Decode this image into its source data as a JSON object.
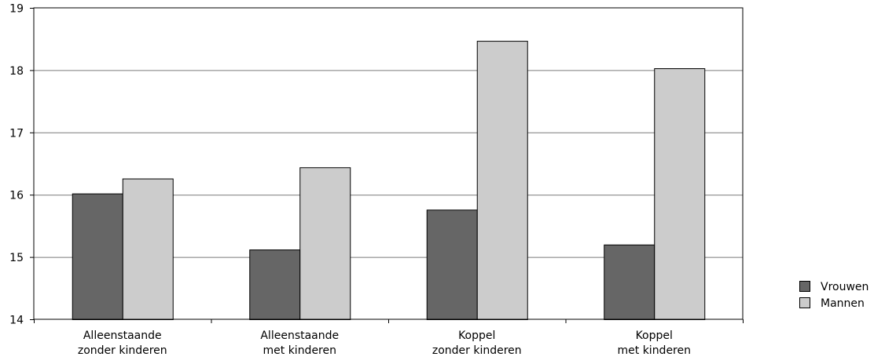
{
  "chart_data": {
    "type": "bar",
    "title": "",
    "xlabel": "",
    "ylabel": "",
    "ylim": [
      14,
      19
    ],
    "yticks": [
      14,
      15,
      16,
      17,
      18,
      19
    ],
    "categories": [
      [
        "Alleenstaande",
        "zonder kinderen"
      ],
      [
        "Alleenstaande",
        "met kinderen"
      ],
      [
        "Koppel",
        "zonder kinderen"
      ],
      [
        "Koppel",
        "met kinderen"
      ]
    ],
    "series": [
      {
        "name": "Vrouwen",
        "color": "#666666",
        "values": [
          16.02,
          15.12,
          15.76,
          15.2
        ]
      },
      {
        "name": "Mannen",
        "color": "#cccccc",
        "values": [
          16.26,
          16.44,
          18.47,
          18.03
        ]
      }
    ],
    "grid": true,
    "legend": "right"
  }
}
